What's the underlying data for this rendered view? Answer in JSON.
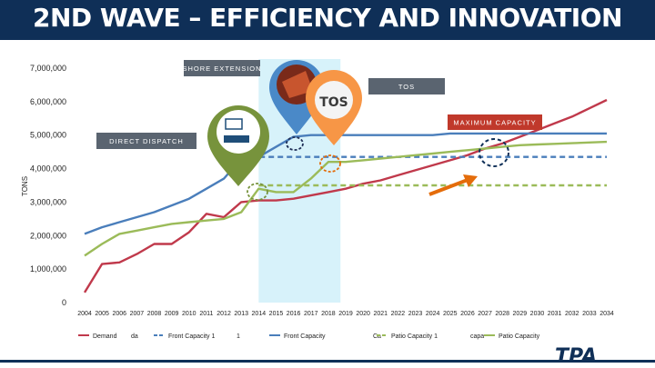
{
  "header": {
    "title": "2ND WAVE – EFFICIENCY AND INNOVATION"
  },
  "callouts": {
    "shore_extension": "SHORE EXTENSION",
    "tos": "TOS",
    "tos_logo": "TOS",
    "maximum_capacity": "MAXIMUM CAPACITY",
    "direct_dispatch": "DIRECT DISPATCH"
  },
  "colors": {
    "title_bg": "#0f2f57",
    "demand": "#c0394b",
    "front": "#4a7ebb",
    "patio": "#9bbb59",
    "highlight_band": "#d7f2fa",
    "pin_blue": "#4a89c8",
    "pin_orange": "#f79646",
    "pin_green": "#77933c",
    "max_capacity_label": "#c0392b",
    "arrow": "#e46c0a"
  },
  "logo": {
    "text": "TPA"
  },
  "chart_data": {
    "type": "line",
    "title": "",
    "ylabel": "TONS",
    "xlabel": "",
    "ylim": [
      0,
      7000000
    ],
    "ytick_labels": [
      "0",
      "1,000,000",
      "2,000,000",
      "3,000,000",
      "4,000,000",
      "5,000,000",
      "6,000,000",
      "7,000,000"
    ],
    "x": [
      "2004",
      "2005",
      "2006",
      "2007",
      "2008",
      "2009",
      "2010",
      "2011",
      "2012",
      "2013",
      "2014",
      "2015",
      "2016",
      "2017",
      "2018",
      "2019",
      "2020",
      "2021",
      "2022",
      "2023",
      "2024",
      "2025",
      "2026",
      "2027",
      "2028",
      "2029",
      "2030",
      "2031",
      "2032",
      "2033",
      "2034"
    ],
    "highlight_years": [
      "2014",
      "2018"
    ],
    "series": [
      {
        "name": "Demand",
        "color": "#c0394b",
        "style": "solid",
        "values": [
          300000,
          1150000,
          1200000,
          1450000,
          1750000,
          1750000,
          2100000,
          2650000,
          2550000,
          3000000,
          3050000,
          3050000,
          3100000,
          3200000,
          3300000,
          3400000,
          3550000,
          3650000,
          3800000,
          3950000,
          4100000,
          4250000,
          4400000,
          4600000,
          4750000,
          4950000,
          5150000,
          5350000,
          5550000,
          5800000,
          6050000
        ]
      },
      {
        "name": "Front Capacity 1",
        "color": "#4a7ebb",
        "style": "dashed",
        "values": [
          null,
          null,
          null,
          null,
          null,
          null,
          null,
          null,
          null,
          4350000,
          4350000,
          4350000,
          4350000,
          4350000,
          4350000,
          4350000,
          4350000,
          4350000,
          4350000,
          4350000,
          4350000,
          4350000,
          4350000,
          4350000,
          4350000,
          4350000,
          4350000,
          4350000,
          4350000,
          4350000,
          4350000
        ]
      },
      {
        "name": "Front Capacity",
        "color": "#4a7ebb",
        "style": "solid",
        "values": [
          2050000,
          2250000,
          2400000,
          2550000,
          2700000,
          2900000,
          3100000,
          3400000,
          3700000,
          4300000,
          4350000,
          4650000,
          4950000,
          5000000,
          5000000,
          5000000,
          5000000,
          5000000,
          5000000,
          5000000,
          5000000,
          5050000,
          5050000,
          5050000,
          5050000,
          5050000,
          5050000,
          5050000,
          5050000,
          5050000,
          5050000
        ]
      },
      {
        "name": "Patio Capacity 1",
        "color": "#9bbb59",
        "style": "dashed",
        "values": [
          null,
          null,
          null,
          null,
          null,
          null,
          null,
          null,
          null,
          null,
          3500000,
          3500000,
          3500000,
          3500000,
          3500000,
          3500000,
          3500000,
          3500000,
          3500000,
          3500000,
          3500000,
          3500000,
          3500000,
          3500000,
          3500000,
          3500000,
          3500000,
          3500000,
          3500000,
          3500000,
          3500000
        ]
      },
      {
        "name": "Patio Capacity",
        "color": "#9bbb59",
        "style": "solid",
        "values": [
          1400000,
          1750000,
          2050000,
          2150000,
          2250000,
          2350000,
          2400000,
          2450000,
          2500000,
          2700000,
          3400000,
          3300000,
          3300000,
          3700000,
          4200000,
          4200000,
          4250000,
          4300000,
          4350000,
          4400000,
          4450000,
          4500000,
          4550000,
          4600000,
          4650000,
          4700000,
          4720000,
          4740000,
          4760000,
          4780000,
          4800000
        ]
      }
    ],
    "legend": {
      "placement": "bottom",
      "items": [
        {
          "label": "Demand",
          "series": "Demand"
        },
        {
          "label": "da",
          "series": ""
        },
        {
          "label": "Front Capacity 1",
          "series": "Front Capacity 1"
        },
        {
          "label": "1",
          "series": ""
        },
        {
          "label": "Front Capacity",
          "series": "Front Capacity"
        },
        {
          "label": "Ca",
          "series": ""
        },
        {
          "label": "Patio Capacity 1",
          "series": "Patio Capacity 1"
        },
        {
          "label": "capa",
          "series": ""
        },
        {
          "label": "Patio Capacity",
          "series": "Patio Capacity"
        }
      ]
    }
  }
}
